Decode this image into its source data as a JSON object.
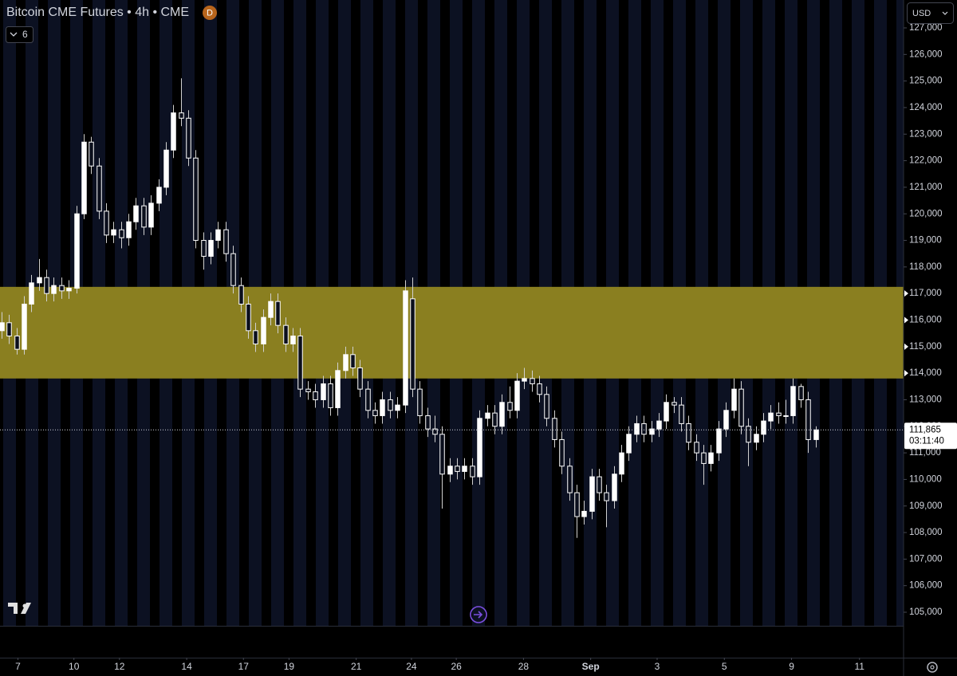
{
  "chart_data": {
    "type": "candlestick",
    "title": "Bitcoin CME Futures • 4h • CME",
    "interval_badge": "D",
    "indicator_count": "6",
    "currency": "USD",
    "up_color": "#ffffff",
    "down_color": "#0b0f1c",
    "wick_color": "#d0d0d0",
    "zone": {
      "low": 113800,
      "high": 117250,
      "color": "#8a7f20"
    },
    "last_price": {
      "value": 111865,
      "label": "111,865"
    },
    "countdown": "03:11:40",
    "ylim": [
      104490,
      128050
    ],
    "yticks": [
      {
        "value": 105000,
        "label": "105,000"
      },
      {
        "value": 106000,
        "label": "106,000"
      },
      {
        "value": 107000,
        "label": "107,000"
      },
      {
        "value": 108000,
        "label": "108,000"
      },
      {
        "value": 109000,
        "label": "109,000"
      },
      {
        "value": 110000,
        "label": "110,000"
      },
      {
        "value": 111000,
        "label": "111,000"
      },
      {
        "value": 112000,
        "label": "112,000"
      },
      {
        "value": 113000,
        "label": "113,000"
      },
      {
        "value": 114000,
        "label": "114,000"
      },
      {
        "value": 115000,
        "label": "115,000"
      },
      {
        "value": 116000,
        "label": "116,000"
      },
      {
        "value": 117000,
        "label": "117,000"
      },
      {
        "value": 118000,
        "label": "118,000"
      },
      {
        "value": 119000,
        "label": "119,000"
      },
      {
        "value": 120000,
        "label": "120,000"
      },
      {
        "value": 121000,
        "label": "121,000"
      },
      {
        "value": 122000,
        "label": "122,000"
      },
      {
        "value": 123000,
        "label": "123,000"
      },
      {
        "value": 124000,
        "label": "124,000"
      },
      {
        "value": 125000,
        "label": "125,000"
      },
      {
        "value": 126000,
        "label": "126,000"
      },
      {
        "value": 127000,
        "label": "127,000"
      }
    ],
    "xlim": [
      -0.2,
      120.8
    ],
    "xticks": [
      {
        "value": 2.2,
        "label": "7"
      },
      {
        "value": 9.7,
        "label": "10"
      },
      {
        "value": 15.8,
        "label": "12"
      },
      {
        "value": 24.8,
        "label": "14"
      },
      {
        "value": 32.4,
        "label": "17"
      },
      {
        "value": 38.5,
        "label": "19"
      },
      {
        "value": 47.5,
        "label": "21"
      },
      {
        "value": 54.9,
        "label": "24"
      },
      {
        "value": 60.9,
        "label": "26"
      },
      {
        "value": 69.9,
        "label": "28"
      },
      {
        "value": 78.9,
        "label": "Sep"
      },
      {
        "value": 87.8,
        "label": "3"
      },
      {
        "value": 96.8,
        "label": "5"
      },
      {
        "value": 105.8,
        "label": "9"
      },
      {
        "value": 114.9,
        "label": "11"
      }
    ],
    "ohlc": [
      [
        115600,
        116300,
        115300,
        115900
      ],
      [
        115900,
        116200,
        115100,
        115400
      ],
      [
        115400,
        115700,
        114700,
        114900
      ],
      [
        114900,
        116900,
        114700,
        116600
      ],
      [
        116600,
        117700,
        116300,
        117400
      ],
      [
        117400,
        118300,
        117100,
        117600
      ],
      [
        117600,
        117900,
        116700,
        117000
      ],
      [
        117000,
        117600,
        116700,
        117300
      ],
      [
        117300,
        117600,
        116800,
        117100
      ],
      [
        117100,
        117500,
        116800,
        117200
      ],
      [
        117200,
        120300,
        117000,
        120000
      ],
      [
        120000,
        123000,
        119800,
        122700
      ],
      [
        122700,
        122900,
        121500,
        121800
      ],
      [
        121800,
        122100,
        119800,
        120100
      ],
      [
        120100,
        120400,
        118900,
        119200
      ],
      [
        119200,
        119700,
        118900,
        119400
      ],
      [
        119400,
        119700,
        118700,
        119100
      ],
      [
        119100,
        120000,
        118800,
        119700
      ],
      [
        119700,
        120600,
        119400,
        120300
      ],
      [
        120300,
        120600,
        119200,
        119500
      ],
      [
        119500,
        120700,
        119200,
        120400
      ],
      [
        120400,
        121300,
        120100,
        121000
      ],
      [
        121000,
        122700,
        120700,
        122400
      ],
      [
        122400,
        124100,
        122100,
        123800
      ],
      [
        123800,
        125100,
        123300,
        123600
      ],
      [
        123600,
        123900,
        121800,
        122100
      ],
      [
        122100,
        122400,
        118700,
        119000
      ],
      [
        119000,
        119300,
        117900,
        118400
      ],
      [
        118400,
        119300,
        118100,
        119000
      ],
      [
        119000,
        119700,
        118700,
        119400
      ],
      [
        119400,
        119700,
        118200,
        118500
      ],
      [
        118500,
        118800,
        117000,
        117300
      ],
      [
        117300,
        117600,
        116300,
        116600
      ],
      [
        116600,
        116900,
        115300,
        115600
      ],
      [
        115600,
        115900,
        114800,
        115100
      ],
      [
        115100,
        116400,
        114800,
        116100
      ],
      [
        116100,
        117000,
        115800,
        116700
      ],
      [
        116700,
        117000,
        115500,
        115800
      ],
      [
        115800,
        116100,
        114800,
        115100
      ],
      [
        115100,
        115700,
        114800,
        115400
      ],
      [
        115400,
        115700,
        113100,
        113400
      ],
      [
        113400,
        113700,
        113000,
        113300
      ],
      [
        113300,
        113600,
        112700,
        113000
      ],
      [
        113000,
        113900,
        112700,
        113600
      ],
      [
        113600,
        113900,
        112400,
        112700
      ],
      [
        112700,
        114400,
        112400,
        114100
      ],
      [
        114100,
        115000,
        113800,
        114700
      ],
      [
        114700,
        115000,
        113900,
        114200
      ],
      [
        114200,
        114500,
        113100,
        113400
      ],
      [
        113400,
        113700,
        112300,
        112600
      ],
      [
        112600,
        112900,
        112100,
        112400
      ],
      [
        112400,
        113300,
        112100,
        113000
      ],
      [
        113000,
        113300,
        112300,
        112600
      ],
      [
        112600,
        113100,
        112300,
        112800
      ],
      [
        112800,
        117500,
        112500,
        117100
      ],
      [
        116800,
        117600,
        113100,
        113400
      ],
      [
        113400,
        113700,
        112100,
        112400
      ],
      [
        112400,
        112700,
        111600,
        111900
      ],
      [
        111900,
        112400,
        111400,
        111700
      ],
      [
        111700,
        112000,
        108900,
        110200
      ],
      [
        110200,
        110800,
        109900,
        110500
      ],
      [
        110500,
        110800,
        110000,
        110300
      ],
      [
        110300,
        110800,
        110000,
        110500
      ],
      [
        110500,
        110800,
        109800,
        110100
      ],
      [
        110100,
        112600,
        109800,
        112300
      ],
      [
        112300,
        112800,
        112000,
        112500
      ],
      [
        112500,
        112800,
        111700,
        112000
      ],
      [
        112000,
        113200,
        111700,
        112900
      ],
      [
        112900,
        113500,
        112300,
        112600
      ],
      [
        112600,
        114000,
        112300,
        113700
      ],
      [
        113700,
        114200,
        113400,
        113800
      ],
      [
        113800,
        114100,
        113300,
        113600
      ],
      [
        113600,
        113900,
        112900,
        113200
      ],
      [
        113200,
        113500,
        112000,
        112300
      ],
      [
        112300,
        112600,
        111200,
        111500
      ],
      [
        111500,
        111800,
        110200,
        110500
      ],
      [
        110500,
        110800,
        109200,
        109500
      ],
      [
        109500,
        109800,
        107800,
        108600
      ],
      [
        108600,
        109200,
        108300,
        108800
      ],
      [
        108800,
        110400,
        108500,
        110100
      ],
      [
        110100,
        110400,
        109200,
        109500
      ],
      [
        109500,
        109800,
        108200,
        109200
      ],
      [
        109200,
        110500,
        108900,
        110200
      ],
      [
        110200,
        111300,
        109900,
        111000
      ],
      [
        111000,
        112000,
        110700,
        111700
      ],
      [
        111700,
        112400,
        111400,
        112100
      ],
      [
        112100,
        112400,
        111400,
        111700
      ],
      [
        111700,
        112200,
        111400,
        111900
      ],
      [
        111900,
        112500,
        111600,
        112200
      ],
      [
        112200,
        113200,
        111900,
        112900
      ],
      [
        112900,
        113100,
        112500,
        112800
      ],
      [
        112800,
        113100,
        111800,
        112100
      ],
      [
        112100,
        112400,
        111100,
        111400
      ],
      [
        111400,
        111700,
        110700,
        111000
      ],
      [
        111000,
        111300,
        109800,
        110600
      ],
      [
        110600,
        111300,
        110300,
        111000
      ],
      [
        111000,
        112200,
        110700,
        111900
      ],
      [
        111900,
        112900,
        111600,
        112600
      ],
      [
        112600,
        113800,
        112300,
        113400
      ],
      [
        113400,
        113700,
        111700,
        112000
      ],
      [
        112000,
        112300,
        110500,
        111400
      ],
      [
        111400,
        112000,
        111100,
        111700
      ],
      [
        111700,
        112500,
        111400,
        112200
      ],
      [
        112200,
        112800,
        111900,
        112500
      ],
      [
        112500,
        112900,
        112100,
        112400
      ],
      [
        112400,
        113000,
        112100,
        112400
      ],
      [
        112400,
        113800,
        112100,
        113500
      ],
      [
        113500,
        113600,
        112700,
        113000
      ],
      [
        113000,
        113300,
        111000,
        111500
      ],
      [
        111500,
        112000,
        111200,
        111865
      ]
    ]
  }
}
